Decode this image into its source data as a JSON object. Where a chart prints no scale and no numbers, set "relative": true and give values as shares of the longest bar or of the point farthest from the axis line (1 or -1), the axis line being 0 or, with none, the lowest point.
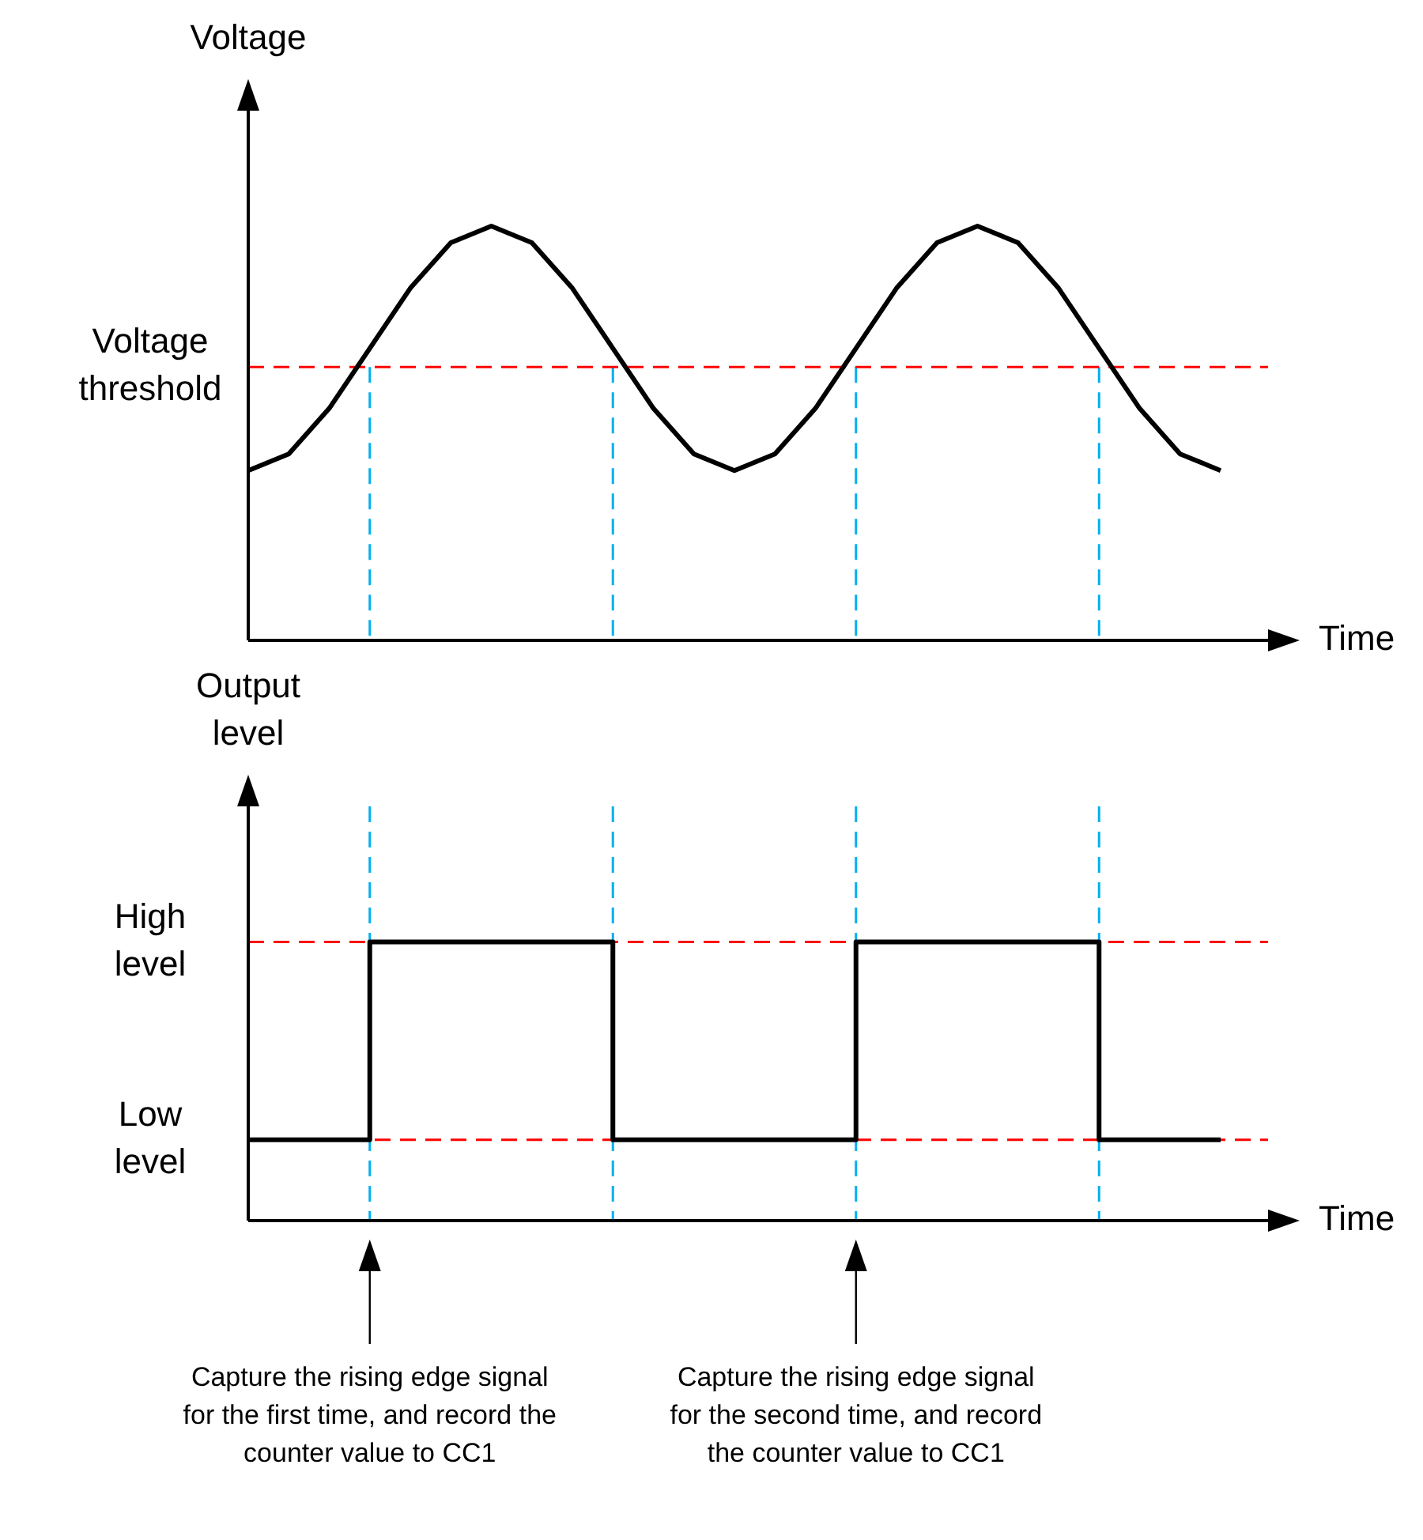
{
  "chart_data": [
    {
      "type": "line",
      "relative": true,
      "ylabel": "Voltage",
      "xlabel": "Time",
      "grid": "x",
      "categories": [
        null,
        null,
        null,
        null,
        null,
        null,
        null,
        null,
        null,
        null,
        null,
        null,
        null,
        null,
        null,
        null,
        null,
        null,
        null,
        null,
        null,
        null,
        null,
        null,
        null
      ],
      "series": [
        {
          "color": "#000000",
          "values": [
            0.41,
            0.45,
            0.56,
            0.705,
            0.85,
            0.96,
            1.0,
            0.96,
            0.85,
            0.705,
            0.56,
            0.45,
            0.41,
            0.45,
            0.56,
            0.705,
            0.85,
            0.96,
            1.0,
            0.96,
            0.85,
            0.705,
            0.56,
            0.45,
            0.41
          ]
        }
      ],
      "ref_lines": [
        {
          "axis": "y",
          "value": 0.66,
          "label": "Voltage threshold",
          "color": "#ff0000",
          "line_style": "dashed"
        }
      ]
    },
    {
      "type": "step",
      "relative": true,
      "ylabel": "Output level",
      "xlabel": "Time",
      "grid": "x",
      "categories": [
        null,
        null,
        null,
        null,
        null,
        null,
        null,
        null,
        null,
        null,
        null,
        null,
        null,
        null,
        null,
        null,
        null,
        null,
        null,
        null,
        null,
        null,
        null,
        null,
        null
      ],
      "series": [
        {
          "color": "#000000",
          "values": [
            0.29,
            0.29,
            0.29,
            1,
            1,
            1,
            1,
            1,
            1,
            0.29,
            0.29,
            0.29,
            0.29,
            0.29,
            0.29,
            1,
            1,
            1,
            1,
            1,
            1,
            0.29,
            0.29,
            0.29,
            0.29
          ]
        }
      ],
      "ref_lines": [
        {
          "axis": "y",
          "value": 1,
          "label": "High level",
          "color": "#ff0000",
          "line_style": "dashed"
        },
        {
          "axis": "y",
          "value": 0.29,
          "label": "Low level",
          "color": "#ff0000",
          "line_style": "dashed"
        }
      ],
      "annotations": [
        "Capture the rising edge signal for the first time, and record the counter value to CC1",
        "Capture the rising edge signal for the second time, and record the counter value to CC1"
      ]
    }
  ]
}
